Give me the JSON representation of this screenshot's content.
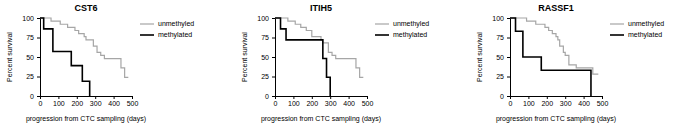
{
  "chart_data": [
    {
      "type": "step",
      "title": "CST6",
      "xlabel": "progression from CTC sampling (days)",
      "ylabel": "Percent survival",
      "xlim": [
        0,
        500
      ],
      "xticks": [
        0,
        100,
        200,
        300,
        400,
        500
      ],
      "ylim": [
        0,
        100
      ],
      "yticks": [
        0,
        25,
        50,
        75,
        100
      ],
      "grid": false,
      "legend": "right",
      "series": [
        {
          "name": "unmethyled",
          "color": "#a6a6a6",
          "x": [
            0,
            60,
            110,
            150,
            190,
            210,
            240,
            250,
            290,
            310,
            330,
            350,
            440,
            460,
            480
          ],
          "values": [
            100,
            96,
            92,
            88,
            84,
            80,
            76,
            72,
            64,
            56,
            52,
            48,
            36,
            24,
            24
          ]
        },
        {
          "name": "methylated",
          "color": "#000000",
          "x": [
            0,
            20,
            70,
            170,
            230,
            270
          ],
          "values": [
            100,
            86,
            57,
            39,
            19,
            0
          ]
        }
      ]
    },
    {
      "type": "step",
      "title": "ITIH5",
      "xlabel": "progression from CTC sampling (days)",
      "ylabel": "Percent survival",
      "xlim": [
        0,
        500
      ],
      "xticks": [
        0,
        100,
        200,
        300,
        400,
        500
      ],
      "ylim": [
        0,
        100
      ],
      "yticks": [
        0,
        25,
        50,
        75,
        100
      ],
      "grid": false,
      "legend": "right",
      "series": [
        {
          "name": "unmethyled",
          "color": "#a6a6a6",
          "x": [
            0,
            70,
            110,
            140,
            170,
            200,
            250,
            260,
            290,
            310,
            330,
            440,
            460,
            480
          ],
          "values": [
            100,
            96,
            92,
            88,
            84,
            76,
            72,
            68,
            56,
            52,
            48,
            36,
            24,
            24
          ]
        },
        {
          "name": "methylated",
          "color": "#000000",
          "x": [
            0,
            30,
            60,
            260,
            280,
            300
          ],
          "values": [
            100,
            86,
            72,
            48,
            24,
            0
          ]
        }
      ]
    },
    {
      "type": "step",
      "title": "RASSF1",
      "xlabel": "progression from CTC sampling (days)",
      "ylabel": "Percent survival",
      "xlim": [
        0,
        500
      ],
      "xticks": [
        0,
        100,
        200,
        300,
        400,
        500
      ],
      "ylim": [
        0,
        100
      ],
      "yticks": [
        0,
        25,
        50,
        75,
        100
      ],
      "grid": false,
      "legend": "right",
      "series": [
        {
          "name": "unmethyled",
          "color": "#a6a6a6",
          "x": [
            0,
            90,
            140,
            190,
            210,
            230,
            250,
            260,
            270,
            290,
            300,
            320,
            360,
            450,
            480
          ],
          "values": [
            100,
            96,
            92,
            88,
            84,
            80,
            76,
            72,
            64,
            56,
            52,
            40,
            36,
            28,
            28
          ]
        },
        {
          "name": "methylated",
          "color": "#000000",
          "x": [
            0,
            30,
            70,
            170,
            440
          ],
          "values": [
            100,
            83,
            50,
            33,
            0
          ]
        }
      ]
    }
  ]
}
